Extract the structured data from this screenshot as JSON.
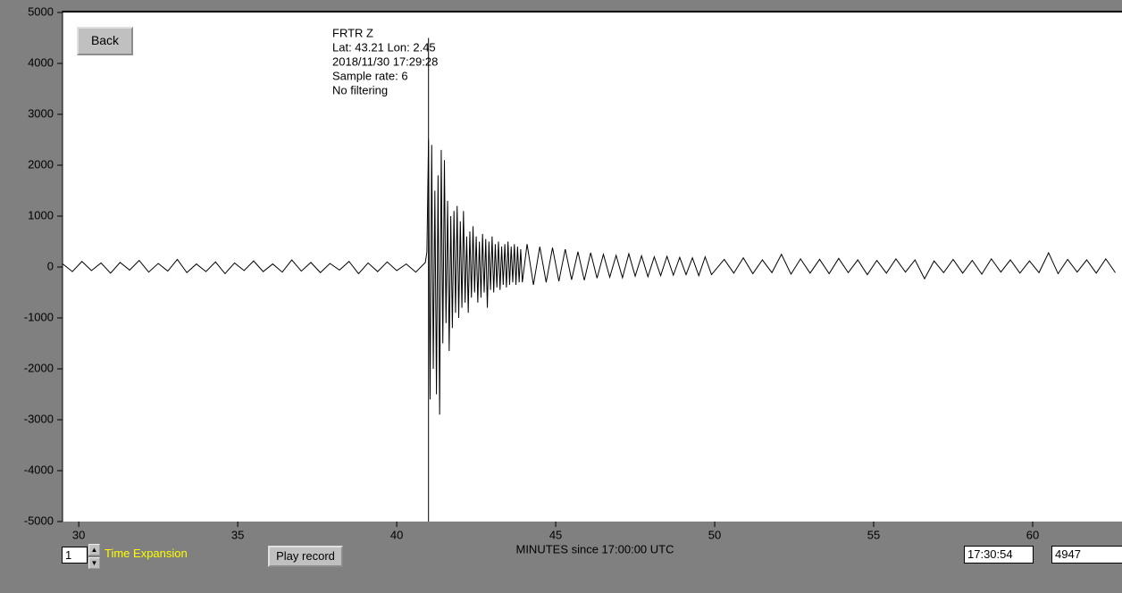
{
  "chart_data": {
    "type": "line",
    "annotations": [
      "FRTR  Z",
      "Lat: 43.21 Lon: 2.45",
      "2018/11/30 17:29:28",
      "Sample rate: 6",
      "No filtering"
    ],
    "x_label": "MINUTES since 17:00:00 UTC",
    "xlim": [
      29.49,
      62.81
    ],
    "xticks": [
      30,
      35,
      40,
      45,
      50,
      55,
      60
    ],
    "ylim": [
      -5000,
      5000
    ],
    "yticks": [
      -5000,
      -4000,
      -3000,
      -2000,
      -1000,
      0,
      1000,
      2000,
      3000,
      4000,
      5000
    ],
    "cursor_x": 41,
    "cursor_top": 4500,
    "series": [
      {
        "color": "#000000",
        "x": [
          29.5,
          29.8,
          30.1,
          30.4,
          30.7,
          31,
          31.3,
          31.6,
          31.9,
          32.2,
          32.5,
          32.8,
          33.1,
          33.4,
          33.7,
          34,
          34.3,
          34.6,
          34.9,
          35.2,
          35.5,
          35.8,
          36.1,
          36.4,
          36.7,
          37,
          37.3,
          37.6,
          37.9,
          38.2,
          38.5,
          38.8,
          39.1,
          39.4,
          39.7,
          40,
          40.3,
          40.6,
          40.9,
          40.95,
          41,
          41.05,
          41.1,
          41.15,
          41.2,
          41.25,
          41.3,
          41.35,
          41.4,
          41.45,
          41.5,
          41.55,
          41.6,
          41.65,
          41.7,
          41.75,
          41.8,
          41.85,
          41.9,
          41.95,
          42,
          42.05,
          42.1,
          42.15,
          42.2,
          42.25,
          42.3,
          42.35,
          42.4,
          42.45,
          42.5,
          42.55,
          42.6,
          42.65,
          42.7,
          42.75,
          42.8,
          42.85,
          42.9,
          42.95,
          43,
          43.05,
          43.1,
          43.15,
          43.2,
          43.25,
          43.3,
          43.35,
          43.4,
          43.45,
          43.5,
          43.55,
          43.6,
          43.65,
          43.7,
          43.75,
          43.8,
          43.85,
          43.9,
          43.95,
          44.1,
          44.3,
          44.5,
          44.7,
          44.9,
          45.1,
          45.3,
          45.5,
          45.7,
          45.9,
          46.1,
          46.3,
          46.5,
          46.7,
          46.9,
          47.1,
          47.3,
          47.5,
          47.7,
          47.9,
          48.1,
          48.3,
          48.5,
          48.7,
          48.9,
          49.1,
          49.3,
          49.5,
          49.7,
          49.9,
          50.3,
          50.6,
          50.9,
          51.2,
          51.5,
          51.8,
          52.1,
          52.4,
          52.7,
          53,
          53.3,
          53.6,
          53.9,
          54.2,
          54.5,
          54.8,
          55.1,
          55.4,
          55.7,
          56,
          56.3,
          56.6,
          56.9,
          57.2,
          57.5,
          57.8,
          58.1,
          58.4,
          58.7,
          59,
          59.3,
          59.6,
          59.9,
          60.2,
          60.5,
          60.8,
          61.1,
          61.4,
          61.7,
          62,
          62.3,
          62.6
        ],
        "values": [
          60,
          -90,
          110,
          -70,
          80,
          -120,
          90,
          -60,
          130,
          -100,
          70,
          -80,
          150,
          -110,
          60,
          -90,
          100,
          -130,
          80,
          -70,
          120,
          -90,
          60,
          -100,
          140,
          -80,
          90,
          -110,
          70,
          -60,
          110,
          -130,
          80,
          -90,
          100,
          -70,
          60,
          -100,
          90,
          300,
          2500,
          -2600,
          2400,
          -2000,
          1500,
          -2500,
          1800,
          -2900,
          2300,
          -1500,
          2100,
          -1100,
          1300,
          -1650,
          1000,
          -1200,
          1100,
          -900,
          1200,
          -1000,
          900,
          -800,
          1100,
          -700,
          600,
          -900,
          700,
          -600,
          800,
          -500,
          600,
          -700,
          500,
          -600,
          650,
          -500,
          550,
          -800,
          500,
          -450,
          600,
          -500,
          450,
          -400,
          500,
          -450,
          400,
          -350,
          450,
          -400,
          500,
          -350,
          400,
          -300,
          450,
          -350,
          400,
          -300,
          350,
          -300,
          450,
          -350,
          400,
          -300,
          380,
          -280,
          350,
          -250,
          300,
          -260,
          280,
          -220,
          250,
          -200,
          230,
          -210,
          260,
          -180,
          220,
          -190,
          200,
          -170,
          210,
          -160,
          190,
          -150,
          180,
          -170,
          200,
          -150,
          150,
          -120,
          180,
          -130,
          140,
          -110,
          250,
          -140,
          160,
          -120,
          150,
          -130,
          170,
          -110,
          140,
          -150,
          130,
          -120,
          160,
          -100,
          140,
          -230,
          120,
          -110,
          150,
          -120,
          130,
          -140,
          160,
          -100,
          140,
          -120,
          120,
          -110,
          280,
          -130,
          150,
          -100,
          140,
          -120,
          160,
          -110
        ]
      }
    ]
  },
  "ui": {
    "back_button": "Back",
    "time_expansion_value": "1",
    "time_expansion_label": "Time Expansion",
    "play_button": "Play record",
    "time_box": "17:30:54",
    "value_box": "4947"
  }
}
